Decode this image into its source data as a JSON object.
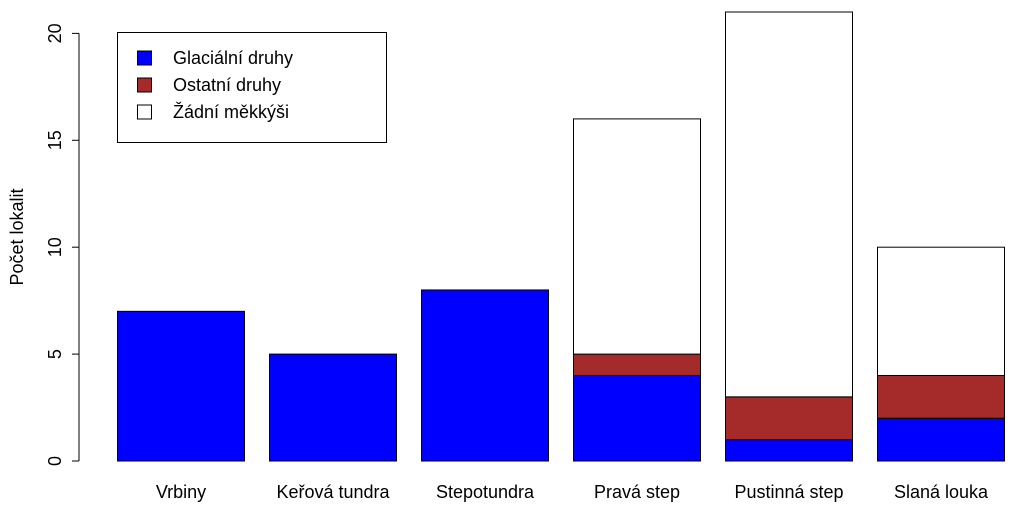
{
  "chart_data": {
    "type": "bar",
    "stacked": true,
    "title": "",
    "xlabel": "",
    "ylabel": "Počet lokalit",
    "ylim": [
      0,
      21
    ],
    "yticks": [
      0,
      5,
      10,
      15,
      20
    ],
    "grid": false,
    "legend_position": "top-left",
    "categories": [
      "Vrbiny",
      "Keřová tundra",
      "Stepotundra",
      "Pravá step",
      "Pustinná step",
      "Slaná louka"
    ],
    "series": [
      {
        "name": "Glaciální druhy",
        "color": "#0000ff",
        "values": [
          7,
          5,
          8,
          4,
          1,
          2
        ]
      },
      {
        "name": "Ostatní druhy",
        "color": "#a52a2a",
        "values": [
          0,
          0,
          0,
          1,
          2,
          2
        ]
      },
      {
        "name": "Žádní měkkýši",
        "color": "#ffffff",
        "values": [
          0,
          0,
          0,
          11,
          18,
          6
        ]
      }
    ]
  }
}
